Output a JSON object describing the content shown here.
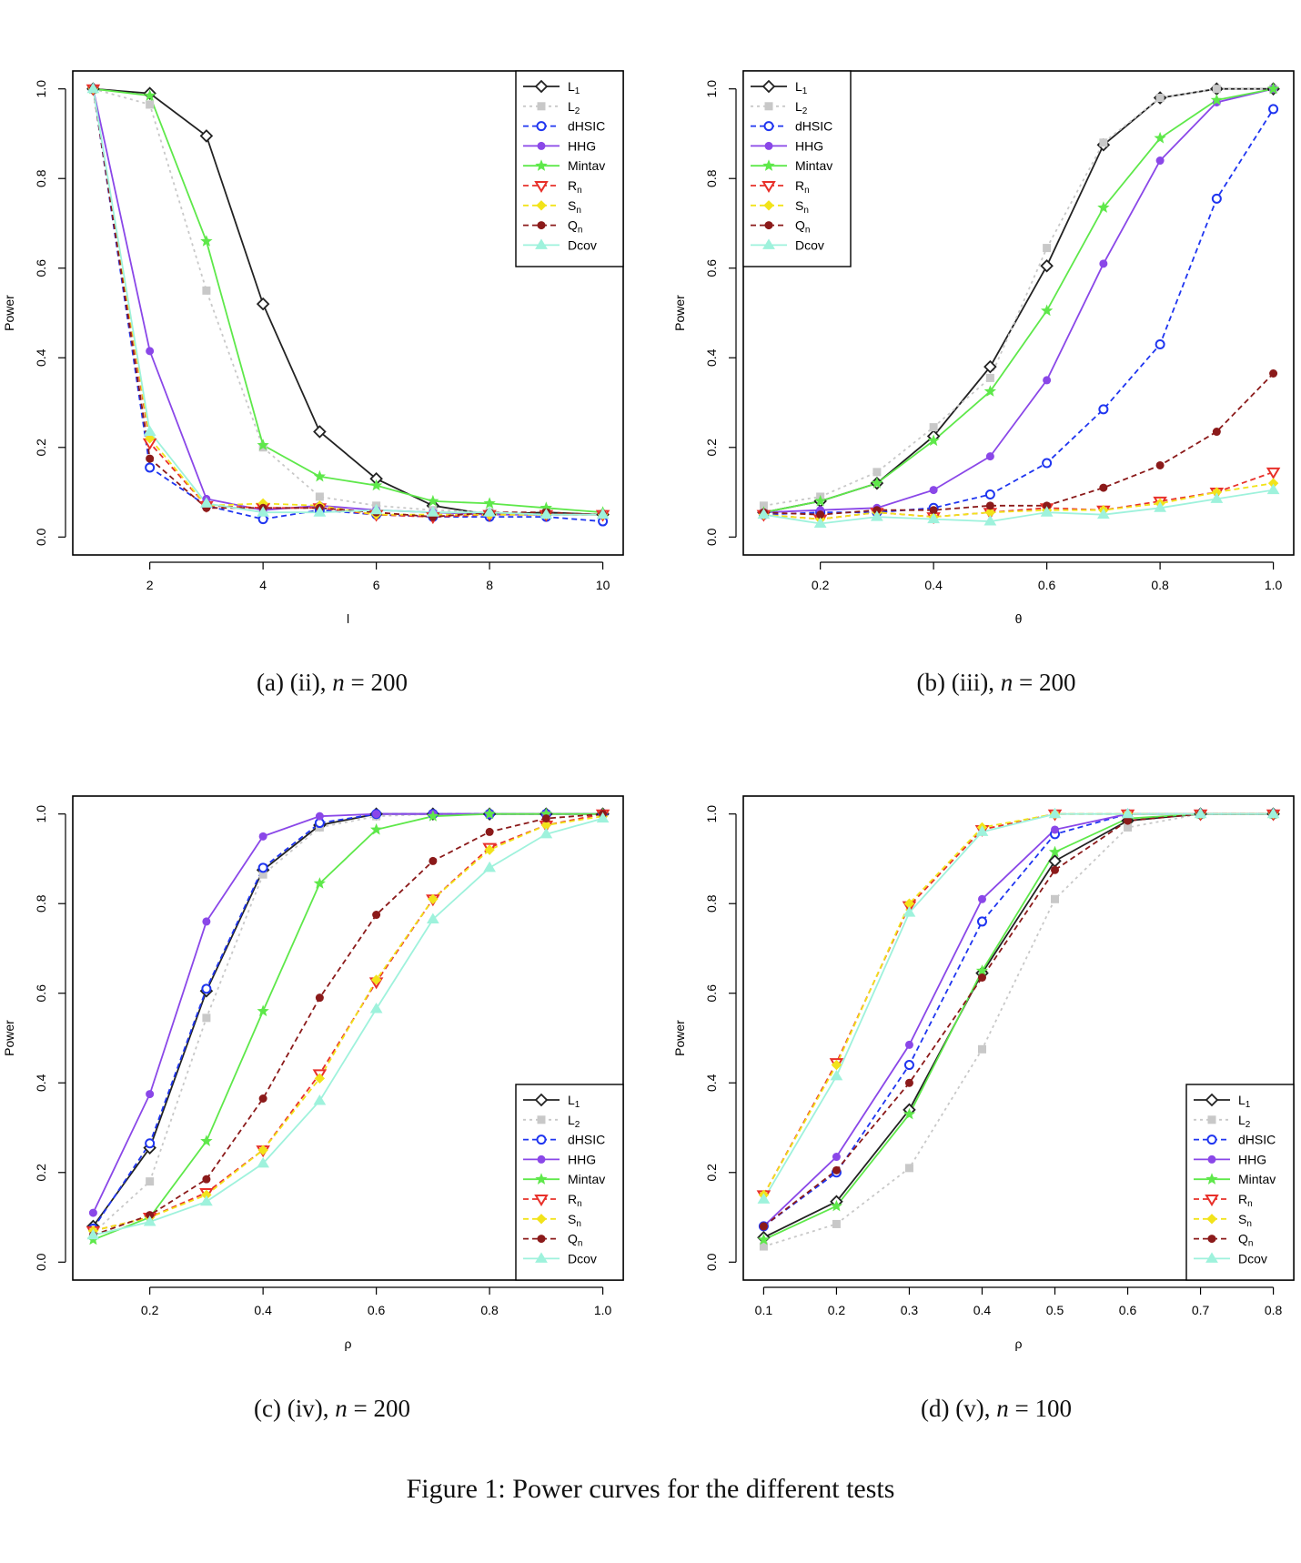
{
  "figure_caption": "Figure 1: Power curves for the different tests",
  "legend": {
    "labels": [
      "L1",
      "L2",
      "dHSIC",
      "HHG",
      "Mintav",
      "Rn",
      "Sn",
      "Qn",
      "Dcov"
    ],
    "label_base": [
      "L",
      "L",
      "dHSIC",
      "HHG",
      "Mintav",
      "R",
      "S",
      "Q",
      "Dcov"
    ],
    "label_sub": [
      "1",
      "2",
      "",
      "",
      "",
      "n",
      "n",
      "n",
      ""
    ]
  },
  "series_style": [
    {
      "name": "L1",
      "color": "#222222",
      "dash": "solid",
      "marker": "diamond-open"
    },
    {
      "name": "L2",
      "color": "#c8c8c8",
      "dash": "dotted",
      "marker": "square-filled"
    },
    {
      "name": "dHSIC",
      "color": "#1f35f0",
      "dash": "dashed",
      "marker": "circle-open"
    },
    {
      "name": "HHG",
      "color": "#8a47e8",
      "dash": "solid",
      "marker": "circle-filled"
    },
    {
      "name": "Mintav",
      "color": "#5ee84a",
      "dash": "solid",
      "marker": "star"
    },
    {
      "name": "Rn",
      "color": "#e8302a",
      "dash": "dashed",
      "marker": "triangle-down-open"
    },
    {
      "name": "Sn",
      "color": "#f2e31a",
      "dash": "dashed",
      "marker": "diamond-filled"
    },
    {
      "name": "Qn",
      "color": "#8b1a1a",
      "dash": "dashed",
      "marker": "circle-filled"
    },
    {
      "name": "Dcov",
      "color": "#9ef2dc",
      "dash": "solid",
      "marker": "triangle-up"
    }
  ],
  "chart_data": [
    {
      "type": "line",
      "caption": {
        "prefix": "(a) (ii), ",
        "var": "n",
        "rest": " = 200"
      },
      "xlabel": "l",
      "ylabel": "Power",
      "xlim": [
        1,
        10
      ],
      "ylim": [
        0,
        1
      ],
      "xticks": [
        2,
        4,
        6,
        8,
        10
      ],
      "xtick_labels": [
        "2",
        "4",
        "6",
        "8",
        "10"
      ],
      "yticks": [
        0.0,
        0.2,
        0.4,
        0.6,
        0.8,
        1.0
      ],
      "ytick_labels": [
        "0.0",
        "0.2",
        "0.4",
        "0.6",
        "0.8",
        "1.0"
      ],
      "legend_position": "top-right",
      "x": [
        1,
        2,
        3,
        4,
        5,
        6,
        7,
        8,
        9,
        10
      ],
      "series": [
        {
          "name": "L1",
          "values": [
            1.0,
            0.99,
            0.895,
            0.52,
            0.235,
            0.13,
            0.07,
            0.05,
            0.055,
            0.05
          ]
        },
        {
          "name": "L2",
          "values": [
            1.0,
            0.965,
            0.55,
            0.2,
            0.09,
            0.07,
            0.06,
            0.055,
            0.05,
            0.05
          ]
        },
        {
          "name": "dHSIC",
          "values": [
            1.0,
            0.155,
            0.07,
            0.04,
            0.06,
            0.05,
            0.045,
            0.045,
            0.045,
            0.035
          ]
        },
        {
          "name": "HHG",
          "values": [
            1.0,
            0.415,
            0.085,
            0.06,
            0.07,
            0.06,
            0.055,
            0.05,
            0.05,
            0.05
          ]
        },
        {
          "name": "Mintav",
          "values": [
            1.0,
            0.985,
            0.66,
            0.205,
            0.135,
            0.115,
            0.08,
            0.075,
            0.065,
            0.055
          ]
        },
        {
          "name": "Rn",
          "values": [
            1.0,
            0.21,
            0.07,
            0.065,
            0.065,
            0.05,
            0.045,
            0.05,
            0.05,
            0.05
          ]
        },
        {
          "name": "Sn",
          "values": [
            1.0,
            0.22,
            0.07,
            0.075,
            0.07,
            0.05,
            0.05,
            0.05,
            0.05,
            0.05
          ]
        },
        {
          "name": "Qn",
          "values": [
            1.0,
            0.175,
            0.065,
            0.065,
            0.065,
            0.055,
            0.045,
            0.055,
            0.055,
            0.05
          ]
        },
        {
          "name": "Dcov",
          "values": [
            1.0,
            0.235,
            0.075,
            0.055,
            0.055,
            0.06,
            0.055,
            0.055,
            0.05,
            0.05
          ]
        }
      ]
    },
    {
      "type": "line",
      "caption": {
        "prefix": "(b) (iii), ",
        "var": "n",
        "rest": " = 200"
      },
      "xlabel": "θ",
      "ylabel": "Power",
      "xlim": [
        0.1,
        1.0
      ],
      "ylim": [
        0,
        1
      ],
      "xticks": [
        0.2,
        0.4,
        0.6,
        0.8,
        1.0
      ],
      "xtick_labels": [
        "0.2",
        "0.4",
        "0.6",
        "0.8",
        "1.0"
      ],
      "yticks": [
        0.0,
        0.2,
        0.4,
        0.6,
        0.8,
        1.0
      ],
      "ytick_labels": [
        "0.0",
        "0.2",
        "0.4",
        "0.6",
        "0.8",
        "1.0"
      ],
      "legend_position": "top-left",
      "x": [
        0.1,
        0.2,
        0.3,
        0.4,
        0.5,
        0.6,
        0.7,
        0.8,
        0.9,
        1.0
      ],
      "series": [
        {
          "name": "L1",
          "values": [
            0.055,
            0.08,
            0.12,
            0.225,
            0.38,
            0.605,
            0.875,
            0.98,
            1.0,
            1.0
          ]
        },
        {
          "name": "L2",
          "values": [
            0.07,
            0.09,
            0.145,
            0.245,
            0.355,
            0.645,
            0.88,
            0.98,
            1.0,
            1.0
          ]
        },
        {
          "name": "dHSIC",
          "values": [
            0.05,
            0.055,
            0.055,
            0.065,
            0.095,
            0.165,
            0.285,
            0.43,
            0.755,
            0.955
          ]
        },
        {
          "name": "HHG",
          "values": [
            0.055,
            0.06,
            0.065,
            0.105,
            0.18,
            0.35,
            0.61,
            0.84,
            0.97,
            1.0
          ]
        },
        {
          "name": "Mintav",
          "values": [
            0.055,
            0.08,
            0.12,
            0.215,
            0.325,
            0.505,
            0.735,
            0.89,
            0.975,
            1.0
          ]
        },
        {
          "name": "Rn",
          "values": [
            0.05,
            0.04,
            0.055,
            0.045,
            0.055,
            0.065,
            0.06,
            0.08,
            0.1,
            0.145
          ]
        },
        {
          "name": "Sn",
          "values": [
            0.05,
            0.04,
            0.055,
            0.045,
            0.055,
            0.06,
            0.06,
            0.075,
            0.1,
            0.12
          ]
        },
        {
          "name": "Qn",
          "values": [
            0.055,
            0.05,
            0.06,
            0.06,
            0.07,
            0.07,
            0.11,
            0.16,
            0.235,
            0.365
          ]
        },
        {
          "name": "Dcov",
          "values": [
            0.05,
            0.03,
            0.045,
            0.04,
            0.035,
            0.055,
            0.05,
            0.065,
            0.085,
            0.105
          ]
        }
      ]
    },
    {
      "type": "line",
      "caption": {
        "prefix": "(c) (iv), ",
        "var": "n",
        "rest": " = 200"
      },
      "xlabel": "ρ",
      "ylabel": "Power",
      "xlim": [
        0.1,
        1.0
      ],
      "ylim": [
        0,
        1
      ],
      "xticks": [
        0.2,
        0.4,
        0.6,
        0.8,
        1.0
      ],
      "xtick_labels": [
        "0.2",
        "0.4",
        "0.6",
        "0.8",
        "1.0"
      ],
      "yticks": [
        0.0,
        0.2,
        0.4,
        0.6,
        0.8,
        1.0
      ],
      "ytick_labels": [
        "0.0",
        "0.2",
        "0.4",
        "0.6",
        "0.8",
        "1.0"
      ],
      "legend_position": "bottom-right",
      "x": [
        0.1,
        0.2,
        0.3,
        0.4,
        0.5,
        0.6,
        0.7,
        0.8,
        0.9,
        1.0
      ],
      "series": [
        {
          "name": "L1",
          "values": [
            0.08,
            0.255,
            0.605,
            0.875,
            0.975,
            1.0,
            1.0,
            1.0,
            1.0,
            1.0
          ]
        },
        {
          "name": "L2",
          "values": [
            0.065,
            0.18,
            0.545,
            0.865,
            0.97,
            0.995,
            1.0,
            1.0,
            1.0,
            1.0
          ]
        },
        {
          "name": "dHSIC",
          "values": [
            0.075,
            0.265,
            0.61,
            0.88,
            0.98,
            1.0,
            1.0,
            1.0,
            1.0,
            1.0
          ]
        },
        {
          "name": "HHG",
          "values": [
            0.11,
            0.375,
            0.76,
            0.95,
            0.995,
            1.0,
            1.0,
            1.0,
            1.0,
            1.0
          ]
        },
        {
          "name": "Mintav",
          "values": [
            0.05,
            0.1,
            0.27,
            0.56,
            0.845,
            0.965,
            0.995,
            1.0,
            1.0,
            1.0
          ]
        },
        {
          "name": "Rn",
          "values": [
            0.07,
            0.1,
            0.155,
            0.25,
            0.42,
            0.625,
            0.81,
            0.925,
            0.975,
            1.0
          ]
        },
        {
          "name": "Sn",
          "values": [
            0.07,
            0.1,
            0.15,
            0.25,
            0.41,
            0.63,
            0.81,
            0.92,
            0.975,
            0.995
          ]
        },
        {
          "name": "Qn",
          "values": [
            0.06,
            0.105,
            0.185,
            0.365,
            0.59,
            0.775,
            0.895,
            0.96,
            0.99,
            1.0
          ]
        },
        {
          "name": "Dcov",
          "values": [
            0.06,
            0.09,
            0.135,
            0.22,
            0.36,
            0.565,
            0.765,
            0.88,
            0.955,
            0.99
          ]
        }
      ]
    },
    {
      "type": "line",
      "caption": {
        "prefix": "(d) (v), ",
        "var": "n",
        "rest": " = 100"
      },
      "xlabel": "ρ",
      "ylabel": "Power",
      "xlim": [
        0.1,
        0.8
      ],
      "ylim": [
        0,
        1
      ],
      "xticks": [
        0.1,
        0.2,
        0.3,
        0.4,
        0.5,
        0.6,
        0.7,
        0.8
      ],
      "xtick_labels": [
        "0.1",
        "0.2",
        "0.3",
        "0.4",
        "0.5",
        "0.6",
        "0.7",
        "0.8"
      ],
      "yticks": [
        0.0,
        0.2,
        0.4,
        0.6,
        0.8,
        1.0
      ],
      "ytick_labels": [
        "0.0",
        "0.2",
        "0.4",
        "0.6",
        "0.8",
        "1.0"
      ],
      "legend_position": "bottom-right",
      "x": [
        0.1,
        0.2,
        0.3,
        0.4,
        0.5,
        0.6,
        0.7,
        0.8
      ],
      "series": [
        {
          "name": "L1",
          "values": [
            0.055,
            0.135,
            0.34,
            0.645,
            0.895,
            0.985,
            1.0,
            1.0
          ]
        },
        {
          "name": "L2",
          "values": [
            0.035,
            0.085,
            0.21,
            0.475,
            0.81,
            0.97,
            1.0,
            1.0
          ]
        },
        {
          "name": "dHSIC",
          "values": [
            0.08,
            0.2,
            0.44,
            0.76,
            0.955,
            1.0,
            1.0,
            1.0
          ]
        },
        {
          "name": "HHG",
          "values": [
            0.08,
            0.235,
            0.485,
            0.81,
            0.965,
            1.0,
            1.0,
            1.0
          ]
        },
        {
          "name": "Mintav",
          "values": [
            0.05,
            0.125,
            0.33,
            0.65,
            0.915,
            0.99,
            1.0,
            1.0
          ]
        },
        {
          "name": "Rn",
          "values": [
            0.15,
            0.445,
            0.795,
            0.965,
            1.0,
            1.0,
            1.0,
            1.0
          ]
        },
        {
          "name": "Sn",
          "values": [
            0.15,
            0.44,
            0.8,
            0.97,
            1.0,
            1.0,
            1.0,
            1.0
          ]
        },
        {
          "name": "Qn",
          "values": [
            0.08,
            0.205,
            0.4,
            0.635,
            0.875,
            0.985,
            1.0,
            1.0
          ]
        },
        {
          "name": "Dcov",
          "values": [
            0.14,
            0.415,
            0.78,
            0.96,
            1.0,
            1.0,
            1.0,
            1.0
          ]
        }
      ]
    }
  ]
}
